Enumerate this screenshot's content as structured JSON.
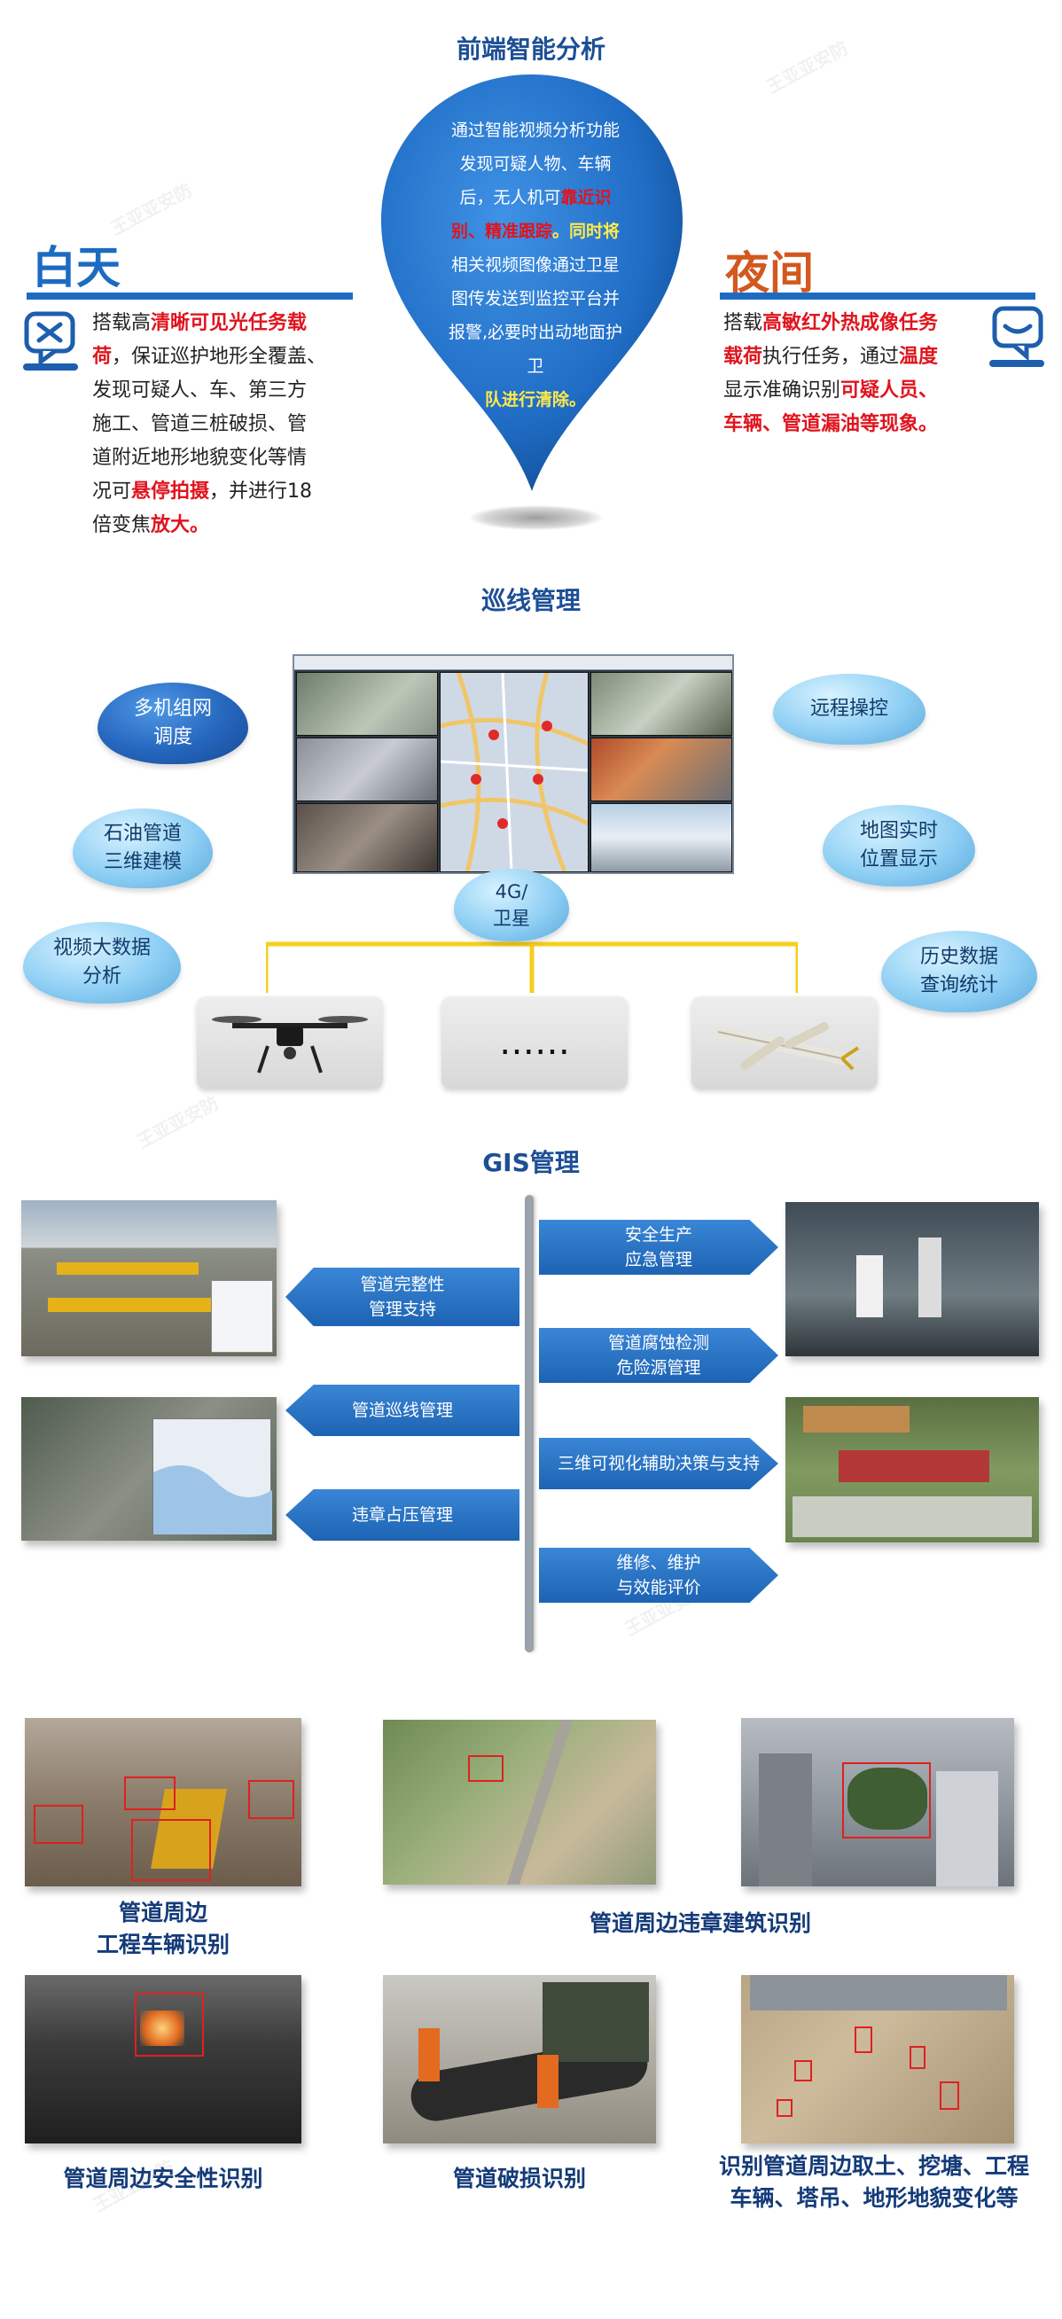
{
  "sections": {
    "front_analysis": "前端智能分析",
    "patrol": "巡线管理",
    "gis": "GIS管理"
  },
  "pin": {
    "line1": "通过智能视频分析功能",
    "line2": "发现可疑人物、车辆",
    "line3a": "后，无人机可",
    "line3b": "靠近识",
    "line4a": "别、精准跟踪",
    "line4b": "。同时将",
    "line5": "相关视频图像通过卫星",
    "line6": "图传发送到监控平台并",
    "line7": "报警,必要时出动地面护",
    "line8": "卫",
    "line9": "队进行清除。"
  },
  "day": {
    "title": "白天",
    "t1": "搭载高",
    "t2": "清晰可见光任务载",
    "t3": "荷",
    "t4": "，保证巡护地形全覆盖、",
    "t5": "发现可疑人、车、第三方",
    "t6": "施工、管道三桩破损、管",
    "t7": "道附近地形地貌变化等情",
    "t8": "况可",
    "t9": "悬停拍摄",
    "t10": "，并进行18",
    "t11": "倍变焦",
    "t12": "放大。"
  },
  "night": {
    "title": "夜间",
    "t1": "搭载",
    "t2": "高敏红外热成像任务",
    "t3": "载荷",
    "t4": "执行任务，通过",
    "t5": "温度",
    "t6": "显示准确识别",
    "t7": "可疑人员、",
    "t8": "车辆、管道漏油等现象。"
  },
  "clouds_left": [
    "多机组网\n调度",
    "石油管道\n三维建模",
    "视频大数据\n分析"
  ],
  "clouds_right": [
    "远程操控",
    "地图实时\n位置显示",
    "历史数据\n查询统计"
  ],
  "link_label": "4G/\n卫星",
  "middle_box": "……",
  "gis_arrows": {
    "right1": "安全生产\n应急管理",
    "right2": "管道腐蚀检测\n危险源管理",
    "right3": "三维可视化辅助决策与支持",
    "right4": "维修、维护\n与效能评价",
    "left1": "管道完整性\n管理支持",
    "left2": "管道巡线管理",
    "left3": "违章占压管理"
  },
  "captions": {
    "c1": "管道周边\n工程车辆识别",
    "c2": "管道周边违章建筑识别",
    "c3": "管道周边安全性识别",
    "c4": "管道破损识别",
    "c5": "识别管道周边取土、挖塘、工程\n车辆、塔吊、地形地貌变化等"
  },
  "colors": {
    "brand_blue": "#1d4f96",
    "accent_red": "#e0141e",
    "pin_blue": "#1f6cc4",
    "orange": "#d2581e"
  }
}
